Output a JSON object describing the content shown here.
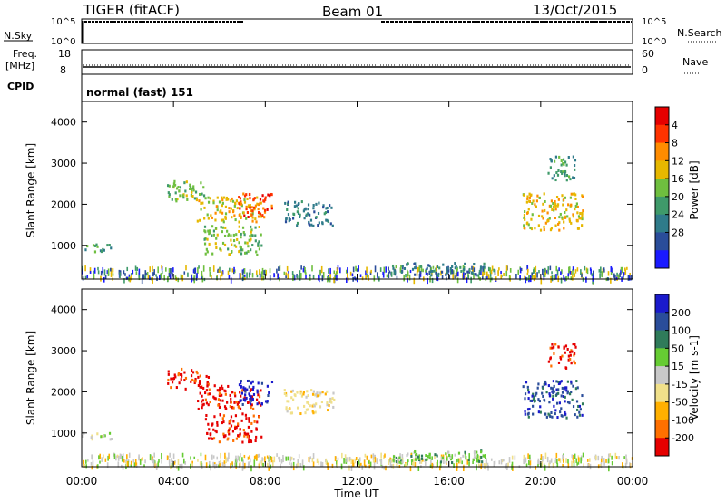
{
  "header": {
    "radar": "TIGER (fitACF)",
    "beam": "Beam 01",
    "date": "13/Oct/2015"
  },
  "top_panels": {
    "nsky_label": "N.Sky",
    "nsearch_label": "N.Search",
    "nsky_ticks": [
      "10^5",
      "10^0"
    ],
    "nsearch_ticks": [
      "10^5",
      "10^0"
    ],
    "freq_label": "Freq.",
    "freq_unit": "[MHz]",
    "freq_ticks": [
      "18",
      "8"
    ],
    "nave_label": "Nave",
    "nave_ticks": [
      "60",
      "0"
    ],
    "cpid_label": "CPID",
    "cpid_text": "normal (fast) 151"
  },
  "chart_data": [
    {
      "type": "heatmap",
      "name": "power",
      "ylabel": "Slant Range [km]",
      "xlabel": "",
      "yticks": [
        "1000",
        "2000",
        "3000",
        "4000"
      ],
      "ylim": [
        180,
        4500
      ],
      "colorbar_label": "Power [dB]",
      "colorbar_ticks": [
        "4",
        "8",
        "12",
        "16",
        "20",
        "24",
        "28"
      ],
      "colorbar_colors": [
        "#1a1aff",
        "#2a4d9a",
        "#2f7b8a",
        "#3f9a6a",
        "#6fbf3f",
        "#e6b800",
        "#ff8c00",
        "#ff3300",
        "#e60000"
      ],
      "bands": [
        {
          "t0": 0.0,
          "t1": 1.3,
          "r0": 850,
          "r1": 1050,
          "level": 3
        },
        {
          "t0": 3.7,
          "t1": 5.5,
          "r0": 2100,
          "r1": 2600,
          "level": 4
        },
        {
          "t0": 5.0,
          "t1": 7.8,
          "r0": 1600,
          "r1": 2200,
          "level": 5
        },
        {
          "t0": 5.3,
          "t1": 7.8,
          "r0": 800,
          "r1": 1500,
          "level": 4
        },
        {
          "t0": 6.8,
          "t1": 8.3,
          "r0": 1700,
          "r1": 2300,
          "level": 7
        },
        {
          "t0": 8.8,
          "t1": 11.0,
          "r0": 1500,
          "r1": 2100,
          "level": 2
        },
        {
          "t0": 19.2,
          "t1": 21.8,
          "r0": 1400,
          "r1": 2300,
          "level": 5
        },
        {
          "t0": 20.3,
          "t1": 21.5,
          "r0": 2600,
          "r1": 3200,
          "level": 3
        },
        {
          "t0": 13.5,
          "t1": 17.5,
          "r0": 300,
          "r1": 600,
          "level": 2
        }
      ]
    },
    {
      "type": "heatmap",
      "name": "velocity",
      "ylabel": "Slant Range [km]",
      "xlabel": "Time UT",
      "xticks": [
        "00:00",
        "04:00",
        "08:00",
        "12:00",
        "16:00",
        "20:00",
        "00:00"
      ],
      "yticks": [
        "1000",
        "2000",
        "3000",
        "4000"
      ],
      "ylim": [
        180,
        4500
      ],
      "colorbar_label": "Velocity [m s-1]",
      "colorbar_ticks": [
        "200",
        "100",
        "50",
        "15",
        "-15",
        "-50",
        "-100",
        "-200"
      ],
      "colorbar_colors": [
        "#1a1acc",
        "#2a4d9a",
        "#2f7b5a",
        "#66cc33",
        "#c8c8c8",
        "#f0e08a",
        "#ffb000",
        "#ff7000",
        "#e60000"
      ],
      "bands": [
        {
          "t0": 3.7,
          "t1": 5.5,
          "r0": 2100,
          "r1": 2600,
          "level": 8
        },
        {
          "t0": 5.0,
          "t1": 7.8,
          "r0": 1600,
          "r1": 2200,
          "level": 8
        },
        {
          "t0": 5.3,
          "t1": 7.8,
          "r0": 800,
          "r1": 1500,
          "level": 8
        },
        {
          "t0": 6.8,
          "t1": 8.3,
          "r0": 1700,
          "r1": 2300,
          "level": 0
        },
        {
          "t0": 8.8,
          "t1": 11.0,
          "r0": 1500,
          "r1": 2100,
          "level": 5
        },
        {
          "t0": 19.2,
          "t1": 21.8,
          "r0": 1400,
          "r1": 2300,
          "level": 1
        },
        {
          "t0": 20.3,
          "t1": 21.5,
          "r0": 2600,
          "r1": 3200,
          "level": 8
        },
        {
          "t0": 0.0,
          "t1": 1.3,
          "r0": 850,
          "r1": 1050,
          "level": 4
        },
        {
          "t0": 13.5,
          "t1": 17.5,
          "r0": 300,
          "r1": 600,
          "level": 3
        }
      ]
    }
  ]
}
